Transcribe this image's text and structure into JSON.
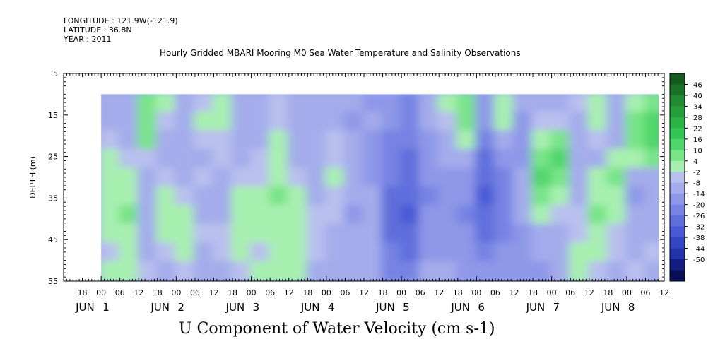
{
  "header": {
    "longitude": "LONGITUDE : 121.9W(-121.9)",
    "latitude": "LATITUDE : 36.8N",
    "year": "YEAR : 2011"
  },
  "chart_data": {
    "type": "heatmap",
    "title": "Hourly Gridded MBARI Mooring M0 Sea Water Temperature and Salinity Observations",
    "xlabel": "U Component of Water Velocity (cm s-1)",
    "ylabel": "DEPTH (m)",
    "ylim": [
      5,
      55
    ],
    "y_inverted": true,
    "data_depth_range": [
      10,
      55
    ],
    "xlim_hours": [
      -12,
      180
    ],
    "yticks": [
      5,
      15,
      25,
      35,
      45,
      55
    ],
    "hour_ticks": [
      "18",
      "00",
      "06",
      "12",
      "18",
      "00",
      "06",
      "12",
      "18",
      "00",
      "06",
      "12",
      "18",
      "00",
      "06",
      "12",
      "18",
      "00",
      "06",
      "12",
      "18",
      "00",
      "06",
      "12",
      "18",
      "00",
      "06",
      "12",
      "18",
      "00",
      "06",
      "12"
    ],
    "day_labels": [
      {
        "month": "JUN",
        "day": "1",
        "hour": 0
      },
      {
        "month": "JUN",
        "day": "2",
        "hour": 24
      },
      {
        "month": "JUN",
        "day": "3",
        "hour": 48
      },
      {
        "month": "JUN",
        "day": "4",
        "hour": 72
      },
      {
        "month": "JUN",
        "day": "5",
        "hour": 96
      },
      {
        "month": "JUN",
        "day": "6",
        "hour": 120
      },
      {
        "month": "JUN",
        "day": "7",
        "hour": 144
      },
      {
        "month": "JUN",
        "day": "8",
        "hour": 168
      }
    ],
    "colorbar": {
      "levels": [
        50,
        46,
        40,
        34,
        28,
        22,
        16,
        10,
        4,
        -2,
        -8,
        -14,
        -20,
        -26,
        -32,
        -38,
        -44,
        -50
      ],
      "labels": [
        "46",
        "40",
        "34",
        "28",
        "22",
        "16",
        "10",
        "4",
        "-2",
        "-8",
        "-14",
        "-20",
        "-26",
        "-32",
        "-38",
        "-44",
        "-50"
      ],
      "colors": [
        "#145a1e",
        "#1c7028",
        "#228a33",
        "#269e3b",
        "#2bb444",
        "#33c654",
        "#4fd66a",
        "#78e488",
        "#a8f0b0",
        "#b9c0ee",
        "#a4aceb",
        "#8e98e8",
        "#7683e3",
        "#5f6edc",
        "#4a5ad6",
        "#3546c4",
        "#2232a8",
        "#131e80",
        "#0a0e55"
      ]
    },
    "series_note": "U velocity values (cm s-1) by hour and depth; greens positive (eastward), blues negative",
    "columns": [
      {
        "t": 0,
        "profile": [
          -6,
          -4,
          2,
          4,
          6,
          8,
          6,
          4,
          2,
          4
        ]
      },
      {
        "t": 6,
        "profile": [
          -8,
          -8,
          -6,
          2,
          6,
          8,
          10,
          8,
          6,
          4
        ]
      },
      {
        "t": 12,
        "profile": [
          10,
          14,
          12,
          2,
          -4,
          -6,
          -8,
          -8,
          -4,
          -2
        ]
      },
      {
        "t": 18,
        "profile": [
          4,
          2,
          -4,
          -6,
          -2,
          4,
          6,
          4,
          -2,
          -4
        ]
      },
      {
        "t": 24,
        "profile": [
          -4,
          -6,
          -6,
          -8,
          -4,
          2,
          4,
          6,
          4,
          2
        ]
      },
      {
        "t": 30,
        "profile": [
          2,
          4,
          -2,
          -4,
          -2,
          -6,
          -4,
          -2,
          -4,
          -6
        ]
      },
      {
        "t": 36,
        "profile": [
          6,
          4,
          2,
          -2,
          -4,
          -6,
          -4,
          -2,
          -2,
          -4
        ]
      },
      {
        "t": 42,
        "profile": [
          -4,
          -6,
          -8,
          -4,
          -2,
          4,
          6,
          8,
          6,
          2
        ]
      },
      {
        "t": 48,
        "profile": [
          -6,
          -8,
          -4,
          -2,
          2,
          4,
          6,
          4,
          2,
          8
        ]
      },
      {
        "t": 54,
        "profile": [
          -2,
          2,
          4,
          6,
          8,
          10,
          8,
          6,
          8,
          6
        ]
      },
      {
        "t": 60,
        "profile": [
          -6,
          -8,
          -6,
          -4,
          2,
          4,
          6,
          8,
          6,
          4
        ]
      },
      {
        "t": 66,
        "profile": [
          -4,
          -4,
          -6,
          -8,
          -6,
          -4,
          -2,
          2,
          -2,
          -4
        ]
      },
      {
        "t": 72,
        "profile": [
          -6,
          -4,
          -2,
          2,
          4,
          2,
          -2,
          -4,
          -6,
          -4
        ]
      },
      {
        "t": 78,
        "profile": [
          -8,
          -10,
          -6,
          -4,
          -6,
          -8,
          -10,
          -8,
          -6,
          -4
        ]
      },
      {
        "t": 84,
        "profile": [
          -10,
          -8,
          -10,
          -12,
          -10,
          -8,
          -6,
          -8,
          -6,
          -8
        ]
      },
      {
        "t": 90,
        "profile": [
          -12,
          -14,
          -16,
          -18,
          -20,
          -22,
          -24,
          -22,
          -20,
          -18
        ]
      },
      {
        "t": 96,
        "profile": [
          -16,
          -18,
          -20,
          -22,
          -24,
          -26,
          -28,
          -26,
          -24,
          -20
        ]
      },
      {
        "t": 102,
        "profile": [
          -6,
          -8,
          -10,
          -12,
          -14,
          -16,
          -14,
          -12,
          -10,
          -8
        ]
      },
      {
        "t": 108,
        "profile": [
          4,
          2,
          -4,
          -8,
          -10,
          -12,
          -14,
          -12,
          -10,
          -8
        ]
      },
      {
        "t": 114,
        "profile": [
          12,
          10,
          4,
          -6,
          -10,
          -14,
          -16,
          -14,
          -12,
          -10
        ]
      },
      {
        "t": 120,
        "profile": [
          -10,
          -14,
          -18,
          -22,
          -26,
          -28,
          -26,
          -22,
          -18,
          -14
        ]
      },
      {
        "t": 126,
        "profile": [
          8,
          4,
          -8,
          -14,
          -18,
          -20,
          -18,
          -16,
          -14,
          -12
        ]
      },
      {
        "t": 132,
        "profile": [
          -8,
          -12,
          -14,
          -10,
          -8,
          -6,
          -8,
          -10,
          -12,
          -10
        ]
      },
      {
        "t": 138,
        "profile": [
          -6,
          -2,
          4,
          12,
          16,
          10,
          4,
          -4,
          -8,
          -10
        ]
      },
      {
        "t": 144,
        "profile": [
          -4,
          2,
          10,
          16,
          14,
          8,
          2,
          -4,
          -6,
          -8
        ]
      },
      {
        "t": 150,
        "profile": [
          -2,
          -4,
          -6,
          -8,
          -6,
          -4,
          -2,
          2,
          6,
          8
        ]
      },
      {
        "t": 156,
        "profile": [
          8,
          6,
          2,
          -4,
          4,
          8,
          10,
          6,
          4,
          2
        ]
      },
      {
        "t": 162,
        "profile": [
          -4,
          -6,
          -4,
          8,
          10,
          6,
          4,
          2,
          -2,
          -4
        ]
      },
      {
        "t": 168,
        "profile": [
          6,
          10,
          14,
          8,
          -6,
          -10,
          -8,
          -6,
          -4,
          -2
        ]
      },
      {
        "t": 174,
        "profile": [
          14,
          18,
          16,
          10,
          -4,
          -8,
          -6,
          -4,
          -2,
          -4
        ]
      }
    ]
  }
}
